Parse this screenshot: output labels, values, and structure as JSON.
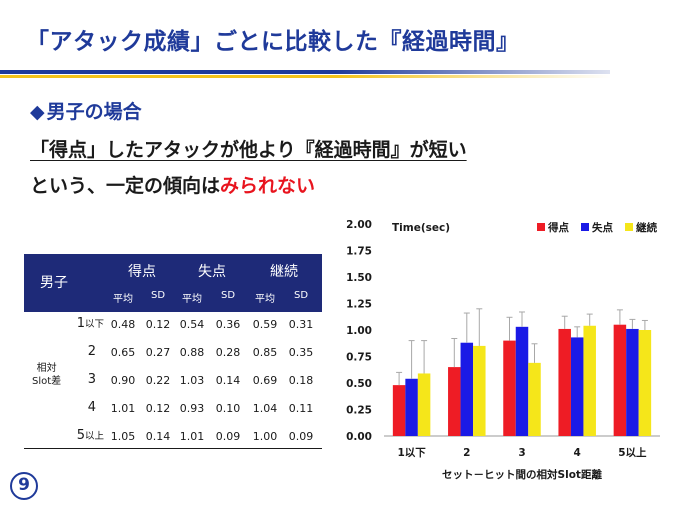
{
  "slide": {
    "title": "「アタック成績」ごとに比較した『経過時間』",
    "section_marker": "◆",
    "section_title": "男子の場合",
    "statement_line1": "「得点」したアタックが他より『経過時間』が短い",
    "statement_line2_prefix": "という、一定の傾向は",
    "statement_line2_highlight": "みられない",
    "page_number": "9"
  },
  "table": {
    "group_label": "男子",
    "outcomes": [
      "得点",
      "失点",
      "継続"
    ],
    "stat_labels": [
      "平均",
      "SD"
    ],
    "side_label_line1": "相対",
    "side_label_line2": "Slot差",
    "rows": [
      {
        "label": "1",
        "suffix": "以下",
        "values": [
          "0.48",
          "0.12",
          "0.54",
          "0.36",
          "0.59",
          "0.31"
        ]
      },
      {
        "label": "2",
        "suffix": "",
        "values": [
          "0.65",
          "0.27",
          "0.88",
          "0.28",
          "0.85",
          "0.35"
        ]
      },
      {
        "label": "3",
        "suffix": "",
        "values": [
          "0.90",
          "0.22",
          "1.03",
          "0.14",
          "0.69",
          "0.18"
        ]
      },
      {
        "label": "4",
        "suffix": "",
        "values": [
          "1.01",
          "0.12",
          "0.93",
          "0.10",
          "1.04",
          "0.11"
        ]
      },
      {
        "label": "5",
        "suffix": "以上",
        "values": [
          "1.05",
          "0.14",
          "1.01",
          "0.09",
          "1.00",
          "0.09"
        ]
      }
    ]
  },
  "chart_data": {
    "type": "bar",
    "title": "",
    "ylabel": "Time(sec)",
    "xlabel": "セット－ヒット間の相対Slot距離",
    "categories": [
      "1以下",
      "2",
      "3",
      "4",
      "5以上"
    ],
    "ylim": [
      0,
      2.0
    ],
    "yticks": [
      "0.00",
      "0.25",
      "0.50",
      "0.75",
      "1.00",
      "1.25",
      "1.50",
      "1.75",
      "2.00"
    ],
    "legend_position": "top-right",
    "grid": false,
    "series": [
      {
        "name": "得点",
        "color": "#ee1c25",
        "values": [
          0.48,
          0.65,
          0.9,
          1.01,
          1.05
        ],
        "sd": [
          0.12,
          0.27,
          0.22,
          0.12,
          0.14
        ]
      },
      {
        "name": "失点",
        "color": "#1a1ae6",
        "values": [
          0.54,
          0.88,
          1.03,
          0.93,
          1.01
        ],
        "sd": [
          0.36,
          0.28,
          0.14,
          0.1,
          0.09
        ]
      },
      {
        "name": "継続",
        "color": "#f5e61a",
        "values": [
          0.59,
          0.85,
          0.69,
          1.04,
          1.0
        ],
        "sd": [
          0.31,
          0.35,
          0.18,
          0.11,
          0.09
        ]
      }
    ]
  }
}
